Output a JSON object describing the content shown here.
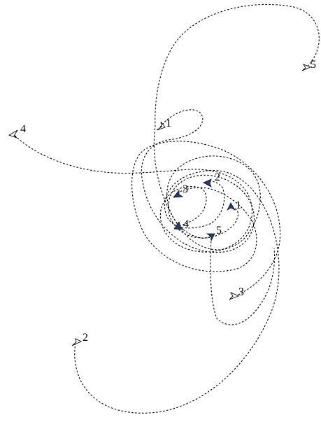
{
  "colors": {
    "background": "#ffffff",
    "trajectory": "#000000",
    "outer_marker_fill": "#ffffff",
    "inner_marker_fill": "#2a3a66"
  },
  "labels": {
    "outer": [
      "1",
      "2",
      "3",
      "4",
      "5"
    ],
    "inner": [
      "1",
      "2",
      "3",
      "4",
      "5"
    ]
  }
}
